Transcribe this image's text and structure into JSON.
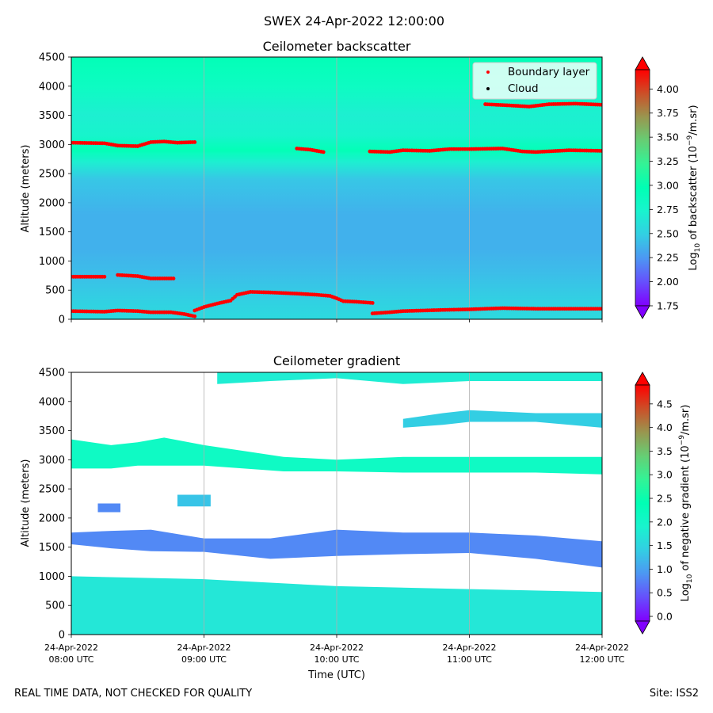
{
  "suptitle": "SWEX 24-Apr-2022 12:00:00",
  "footer": {
    "left": "REAL TIME DATA, NOT CHECKED FOR QUALITY",
    "right": "Site: ISS2"
  },
  "colors": {
    "boundary_layer": "#ff0000",
    "cloud": "#000000",
    "grid": "#b0b0b0"
  },
  "chart_data": [
    {
      "type": "heatmap",
      "title": "Ceilometer backscatter",
      "xlabel": "",
      "ylabel": "Altitude (meters)",
      "ylim": [
        0,
        4500
      ],
      "yticks": [
        0,
        500,
        1000,
        1500,
        2000,
        2500,
        3000,
        3500,
        4000,
        4500
      ],
      "xlim_hours": [
        8,
        12
      ],
      "xticks_hours": [
        8,
        9,
        10,
        11,
        12
      ],
      "grid": "vertical",
      "legend": {
        "placement": "top-right",
        "entries": [
          {
            "label": "Boundary layer",
            "color": "#ff0000"
          },
          {
            "label": "Cloud",
            "color": "#000000"
          }
        ]
      },
      "colorbar": {
        "label": "Log10 of backscatter (10^-9/m.sr)",
        "label_prefix": "Log",
        "label_sub": "10",
        "label_mid": " of backscatter (10",
        "label_sup": "−9",
        "label_end": "/m.sr)",
        "range": [
          1.75,
          4.2
        ],
        "ticks": [
          "1.75",
          "2.00",
          "2.25",
          "2.50",
          "2.75",
          "3.00",
          "3.25",
          "3.50",
          "3.75",
          "4.00"
        ],
        "tick_values": [
          1.75,
          2.0,
          2.25,
          2.5,
          2.75,
          3.0,
          3.25,
          3.5,
          3.75,
          4.0
        ]
      },
      "field_profile": [
        {
          "alt": 0,
          "value": 2.55
        },
        {
          "alt": 300,
          "value": 2.5
        },
        {
          "alt": 800,
          "value": 2.4
        },
        {
          "alt": 1200,
          "value": 2.35
        },
        {
          "alt": 1800,
          "value": 2.35
        },
        {
          "alt": 2400,
          "value": 2.45
        },
        {
          "alt": 2700,
          "value": 2.7
        },
        {
          "alt": 2900,
          "value": 2.95
        },
        {
          "alt": 3150,
          "value": 2.75
        },
        {
          "alt": 3500,
          "value": 2.7
        },
        {
          "alt": 4000,
          "value": 2.85
        },
        {
          "alt": 4500,
          "value": 2.95
        }
      ],
      "boundary_layer_series": [
        {
          "name": "upper-early",
          "points": [
            [
              8.0,
              3030
            ],
            [
              8.25,
              3020
            ],
            [
              8.35,
              2980
            ],
            [
              8.5,
              2970
            ],
            [
              8.6,
              3040
            ],
            [
              8.7,
              3050
            ],
            [
              8.8,
              3030
            ],
            [
              8.93,
              3040
            ]
          ]
        },
        {
          "name": "upper-mid",
          "points": [
            [
              9.7,
              2930
            ],
            [
              9.8,
              2910
            ],
            [
              9.9,
              2870
            ]
          ]
        },
        {
          "name": "upper-late",
          "points": [
            [
              10.25,
              2880
            ],
            [
              10.4,
              2870
            ],
            [
              10.5,
              2900
            ],
            [
              10.7,
              2890
            ],
            [
              10.85,
              2920
            ],
            [
              11.0,
              2920
            ],
            [
              11.25,
              2930
            ],
            [
              11.4,
              2880
            ],
            [
              11.5,
              2870
            ],
            [
              11.75,
              2900
            ],
            [
              12.0,
              2890
            ]
          ]
        },
        {
          "name": "top-late",
          "points": [
            [
              11.12,
              3690
            ],
            [
              11.3,
              3670
            ],
            [
              11.45,
              3650
            ],
            [
              11.6,
              3690
            ],
            [
              11.8,
              3700
            ],
            [
              12.0,
              3680
            ]
          ]
        },
        {
          "name": "mid-early-a",
          "points": [
            [
              8.0,
              730
            ],
            [
              8.25,
              730
            ]
          ]
        },
        {
          "name": "mid-early-b",
          "points": [
            [
              8.35,
              760
            ],
            [
              8.5,
              740
            ],
            [
              8.6,
              700
            ],
            [
              8.77,
              700
            ]
          ]
        },
        {
          "name": "low-early",
          "points": [
            [
              8.0,
              140
            ],
            [
              8.25,
              130
            ],
            [
              8.35,
              150
            ],
            [
              8.5,
              140
            ],
            [
              8.6,
              120
            ],
            [
              8.75,
              120
            ],
            [
              8.85,
              90
            ],
            [
              8.93,
              50
            ]
          ]
        },
        {
          "name": "low-rise",
          "points": [
            [
              8.93,
              150
            ],
            [
              9.0,
              210
            ],
            [
              9.1,
              270
            ],
            [
              9.2,
              320
            ],
            [
              9.25,
              420
            ],
            [
              9.35,
              470
            ],
            [
              9.5,
              460
            ],
            [
              9.7,
              440
            ],
            [
              9.85,
              420
            ],
            [
              9.95,
              400
            ],
            [
              10.0,
              360
            ],
            [
              10.05,
              310
            ],
            [
              10.15,
              300
            ],
            [
              10.27,
              280
            ]
          ]
        },
        {
          "name": "low-late",
          "points": [
            [
              10.27,
              100
            ],
            [
              10.4,
              120
            ],
            [
              10.5,
              140
            ],
            [
              10.8,
              160
            ],
            [
              11.0,
              170
            ],
            [
              11.25,
              190
            ],
            [
              11.5,
              180
            ],
            [
              12.0,
              180
            ]
          ]
        }
      ]
    },
    {
      "type": "heatmap",
      "title": "Ceilometer gradient",
      "xlabel": "Time (UTC)",
      "ylabel": "Altitude (meters)",
      "ylim": [
        0,
        4500
      ],
      "yticks": [
        0,
        500,
        1000,
        1500,
        2000,
        2500,
        3000,
        3500,
        4000,
        4500
      ],
      "xlim_hours": [
        8,
        12
      ],
      "xticks_hours": [
        8,
        9,
        10,
        11,
        12
      ],
      "xtick_labels": [
        [
          "24-Apr-2022",
          "08:00 UTC"
        ],
        [
          "24-Apr-2022",
          "09:00 UTC"
        ],
        [
          "24-Apr-2022",
          "10:00 UTC"
        ],
        [
          "24-Apr-2022",
          "11:00 UTC"
        ],
        [
          "24-Apr-2022",
          "12:00 UTC"
        ]
      ],
      "grid": "vertical",
      "colorbar": {
        "label": "Log10 of negative gradient (10^-9/m.sr)",
        "label_prefix": "Log",
        "label_sub": "10",
        "label_mid": " of negative gradient (10",
        "label_sup": "−9",
        "label_end": "/m.sr)",
        "range": [
          -0.1,
          4.9
        ],
        "ticks": [
          "0.0",
          "0.5",
          "1.0",
          "1.5",
          "2.0",
          "2.5",
          "3.0",
          "3.5",
          "4.0",
          "4.5"
        ],
        "tick_values": [
          0.0,
          0.5,
          1.0,
          1.5,
          2.0,
          2.5,
          3.0,
          3.5,
          4.0,
          4.5
        ]
      },
      "bands": [
        {
          "name": "surface-layer",
          "value": 1.7,
          "points": [
            [
              8.0,
              0,
              1000
            ],
            [
              9.0,
              0,
              950
            ],
            [
              10.0,
              0,
              830
            ],
            [
              11.0,
              0,
              780
            ],
            [
              12.0,
              0,
              730
            ]
          ]
        },
        {
          "name": "layer-1500",
          "value": 0.8,
          "points": [
            [
              8.0,
              1550,
              1750
            ],
            [
              8.3,
              1480,
              1780
            ],
            [
              8.6,
              1430,
              1800
            ],
            [
              9.0,
              1420,
              1650
            ],
            [
              9.5,
              1300,
              1650
            ],
            [
              10.0,
              1350,
              1800
            ],
            [
              10.5,
              1380,
              1750
            ],
            [
              11.0,
              1400,
              1750
            ],
            [
              11.5,
              1300,
              1700
            ],
            [
              12.0,
              1150,
              1600
            ]
          ]
        },
        {
          "name": "layer-3000",
          "value": 2.1,
          "points": [
            [
              8.0,
              2850,
              3350
            ],
            [
              8.3,
              2850,
              3250
            ],
            [
              8.5,
              2900,
              3300
            ],
            [
              8.7,
              2900,
              3380
            ],
            [
              9.0,
              2900,
              3250
            ],
            [
              9.3,
              2850,
              3150
            ],
            [
              9.6,
              2800,
              3050
            ],
            [
              10.0,
              2800,
              3000
            ],
            [
              10.5,
              2780,
              3050
            ],
            [
              11.0,
              2780,
              3050
            ],
            [
              11.5,
              2780,
              3050
            ],
            [
              12.0,
              2750,
              3050
            ]
          ]
        },
        {
          "name": "layer-3700",
          "value": 1.4,
          "points": [
            [
              10.5,
              3550,
              3700
            ],
            [
              10.8,
              3600,
              3800
            ],
            [
              11.0,
              3650,
              3850
            ],
            [
              11.5,
              3650,
              3800
            ],
            [
              12.0,
              3550,
              3800
            ]
          ]
        },
        {
          "name": "layer-top",
          "value": 1.8,
          "points": [
            [
              9.1,
              4300,
              4500
            ],
            [
              9.5,
              4350,
              4500
            ],
            [
              10.0,
              4400,
              4500
            ],
            [
              10.5,
              4300,
              4500
            ],
            [
              11.0,
              4350,
              4500
            ],
            [
              11.5,
              4350,
              4500
            ],
            [
              12.0,
              4350,
              4500
            ]
          ]
        },
        {
          "name": "patch-2300",
          "value": 1.3,
          "points": [
            [
              8.8,
              2200,
              2400
            ],
            [
              9.05,
              2200,
              2400
            ]
          ]
        },
        {
          "name": "patch-2150",
          "value": 0.8,
          "points": [
            [
              8.2,
              2100,
              2250
            ],
            [
              8.37,
              2100,
              2250
            ]
          ]
        }
      ]
    }
  ]
}
